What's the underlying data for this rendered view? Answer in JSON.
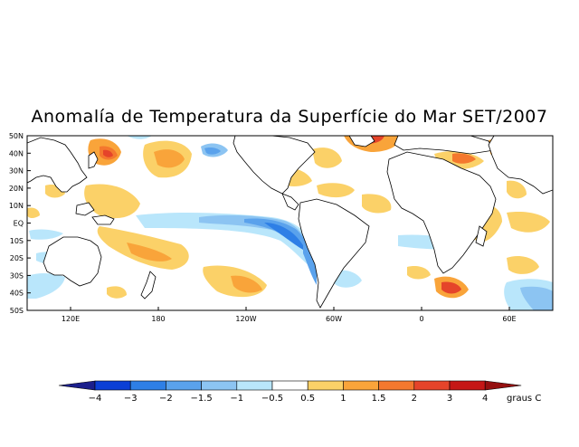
{
  "title": "Anomalía de Temperatura da Superfície do Mar SET/2007",
  "map": {
    "lat_labels": [
      "50N",
      "40N",
      "30N",
      "20N",
      "10N",
      "EQ",
      "10S",
      "20S",
      "30S",
      "40S",
      "50S"
    ],
    "lon_labels": [
      "120E",
      "180",
      "120W",
      "60W",
      "0",
      "60E"
    ]
  },
  "colorbar": {
    "unit": "graus C",
    "tick_labels": [
      "-4",
      "-3",
      "-2",
      "-1.5",
      "-1",
      "-0.5",
      "0.5",
      "1",
      "1.5",
      "2",
      "3",
      "4"
    ],
    "colors": [
      "#1b1f8c",
      "#0b3fd6",
      "#2e7fe6",
      "#5aa2ec",
      "#8cc4f2",
      "#b9e6fb",
      "#ffffff",
      "#fbd168",
      "#f9a43a",
      "#f4782e",
      "#e5442a",
      "#c51716",
      "#951010"
    ]
  }
}
